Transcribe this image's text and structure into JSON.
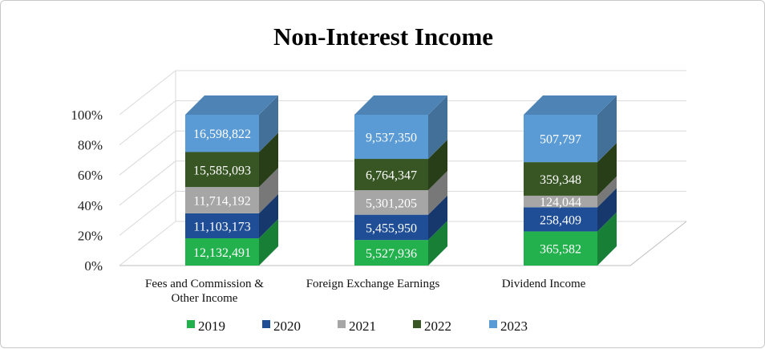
{
  "chart_data": {
    "type": "bar",
    "stacked": "percent",
    "title": "Non-Interest Income",
    "xlabel": "",
    "ylabel": "",
    "ylim": [
      0,
      100
    ],
    "y_ticks": [
      "0%",
      "20%",
      "40%",
      "60%",
      "80%",
      "100%"
    ],
    "categories": [
      [
        "Fees and Commission &",
        "Other Income"
      ],
      [
        "Foreign Exchange Earnings"
      ],
      [
        "Dividend Income"
      ]
    ],
    "series": [
      {
        "name": "2019",
        "values": [
          12132491,
          5527936,
          365582
        ],
        "labels": [
          "12,132,491",
          "5,527,936",
          "365,582"
        ]
      },
      {
        "name": "2020",
        "values": [
          11103173,
          5455950,
          258409
        ],
        "labels": [
          "11,103,173",
          "5,455,950",
          "258,409"
        ]
      },
      {
        "name": "2021",
        "values": [
          11714192,
          5301205,
          124044
        ],
        "labels": [
          "11,714,192",
          "5,301,205",
          "124,044"
        ]
      },
      {
        "name": "2022",
        "values": [
          15585093,
          6764347,
          359348
        ],
        "labels": [
          "15,585,093",
          "6,764,347",
          "359,348"
        ]
      },
      {
        "name": "2023",
        "values": [
          16598822,
          9537350,
          507797
        ],
        "labels": [
          "16,598,822",
          "9,537,350",
          "507,797"
        ]
      }
    ],
    "legend_position": "bottom",
    "grid": true,
    "style": "3d-column"
  },
  "colors": {
    "2019": "#22b14c",
    "2020": "#1f4e96",
    "2021": "#a6a6a6",
    "2022": "#375623",
    "2023": "#5b9bd5",
    "grid": "#d9d9d9",
    "axis": "#bfbfbf"
  }
}
